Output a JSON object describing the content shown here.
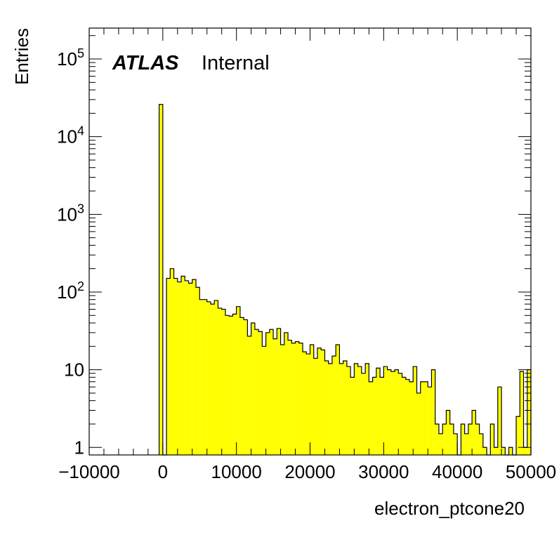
{
  "chart_data": {
    "type": "bar",
    "style": "histogram",
    "xlabel": "electron_ptcone20",
    "ylabel": "Entries",
    "annotation": {
      "experiment": "ATLAS",
      "status": "Internal"
    },
    "xlim": [
      -10000,
      50000
    ],
    "ylim": [
      0.8,
      250000
    ],
    "yscale": "log",
    "grid": false,
    "fill_color": "#ffff00",
    "line_color": "#000000",
    "x_ticks": [
      {
        "value": -10000,
        "label": "−10000"
      },
      {
        "value": 0,
        "label": "0"
      },
      {
        "value": 10000,
        "label": "10000"
      },
      {
        "value": 20000,
        "label": "20000"
      },
      {
        "value": 30000,
        "label": "30000"
      },
      {
        "value": 40000,
        "label": "40000"
      },
      {
        "value": 50000,
        "label": "50000"
      }
    ],
    "y_ticks": [
      {
        "value": 1,
        "base": "1",
        "exp": ""
      },
      {
        "value": 10,
        "base": "10",
        "exp": ""
      },
      {
        "value": 100,
        "base": "10",
        "exp": "2"
      },
      {
        "value": 1000,
        "base": "10",
        "exp": "3"
      },
      {
        "value": 10000,
        "base": "10",
        "exp": "4"
      },
      {
        "value": 100000,
        "base": "10",
        "exp": "5"
      }
    ],
    "bin_width": 500,
    "bins": [
      [
        -500,
        26000
      ],
      [
        0,
        0
      ],
      [
        500,
        150
      ],
      [
        1000,
        200
      ],
      [
        1500,
        150
      ],
      [
        2000,
        135
      ],
      [
        2500,
        160
      ],
      [
        3000,
        140
      ],
      [
        3500,
        130
      ],
      [
        4000,
        145
      ],
      [
        4500,
        115
      ],
      [
        5000,
        80
      ],
      [
        5500,
        80
      ],
      [
        6000,
        75
      ],
      [
        6500,
        70
      ],
      [
        7000,
        78
      ],
      [
        7500,
        62
      ],
      [
        8000,
        60
      ],
      [
        8500,
        50
      ],
      [
        9000,
        49
      ],
      [
        9500,
        52
      ],
      [
        10000,
        65
      ],
      [
        10500,
        47
      ],
      [
        11000,
        44
      ],
      [
        11500,
        27
      ],
      [
        12000,
        40
      ],
      [
        12500,
        33
      ],
      [
        13000,
        31
      ],
      [
        13500,
        20
      ],
      [
        14000,
        30
      ],
      [
        14500,
        33
      ],
      [
        15000,
        25
      ],
      [
        15500,
        34
      ],
      [
        16000,
        21
      ],
      [
        16500,
        30
      ],
      [
        17000,
        24
      ],
      [
        17500,
        22
      ],
      [
        18000,
        23
      ],
      [
        18500,
        22
      ],
      [
        19000,
        17
      ],
      [
        19500,
        16
      ],
      [
        20000,
        21
      ],
      [
        20500,
        14
      ],
      [
        21000,
        19
      ],
      [
        21500,
        18
      ],
      [
        22000,
        13
      ],
      [
        22500,
        12
      ],
      [
        23000,
        15
      ],
      [
        23500,
        21
      ],
      [
        24000,
        12
      ],
      [
        24500,
        13
      ],
      [
        25000,
        11
      ],
      [
        25500,
        8
      ],
      [
        26000,
        12
      ],
      [
        26500,
        11
      ],
      [
        27000,
        9
      ],
      [
        27500,
        12
      ],
      [
        28000,
        7
      ],
      [
        28500,
        8
      ],
      [
        29000,
        10.5
      ],
      [
        29500,
        8
      ],
      [
        30000,
        11
      ],
      [
        30500,
        10
      ],
      [
        31000,
        9.5
      ],
      [
        31500,
        10
      ],
      [
        32000,
        9
      ],
      [
        32500,
        8
      ],
      [
        33000,
        7.5
      ],
      [
        33500,
        7
      ],
      [
        34000,
        11
      ],
      [
        34500,
        5
      ],
      [
        35000,
        7
      ],
      [
        35500,
        7
      ],
      [
        36000,
        6
      ],
      [
        36500,
        10
      ],
      [
        37000,
        2
      ],
      [
        37500,
        1.5
      ],
      [
        38000,
        2
      ],
      [
        38500,
        3
      ],
      [
        39000,
        2
      ],
      [
        39500,
        1.5
      ],
      [
        40000,
        0.6
      ],
      [
        40500,
        2
      ],
      [
        41000,
        1.5
      ],
      [
        41500,
        2
      ],
      [
        42000,
        3
      ],
      [
        42500,
        2
      ],
      [
        43000,
        1.5
      ],
      [
        43500,
        1
      ],
      [
        44000,
        0.6
      ],
      [
        44500,
        2
      ],
      [
        45000,
        1
      ],
      [
        45500,
        6
      ],
      [
        46000,
        1
      ],
      [
        46500,
        0.6
      ],
      [
        47000,
        1
      ],
      [
        47500,
        0.6
      ],
      [
        48000,
        2.5
      ],
      [
        48500,
        9.5
      ],
      [
        49000,
        1
      ],
      [
        49500,
        10
      ]
    ]
  }
}
